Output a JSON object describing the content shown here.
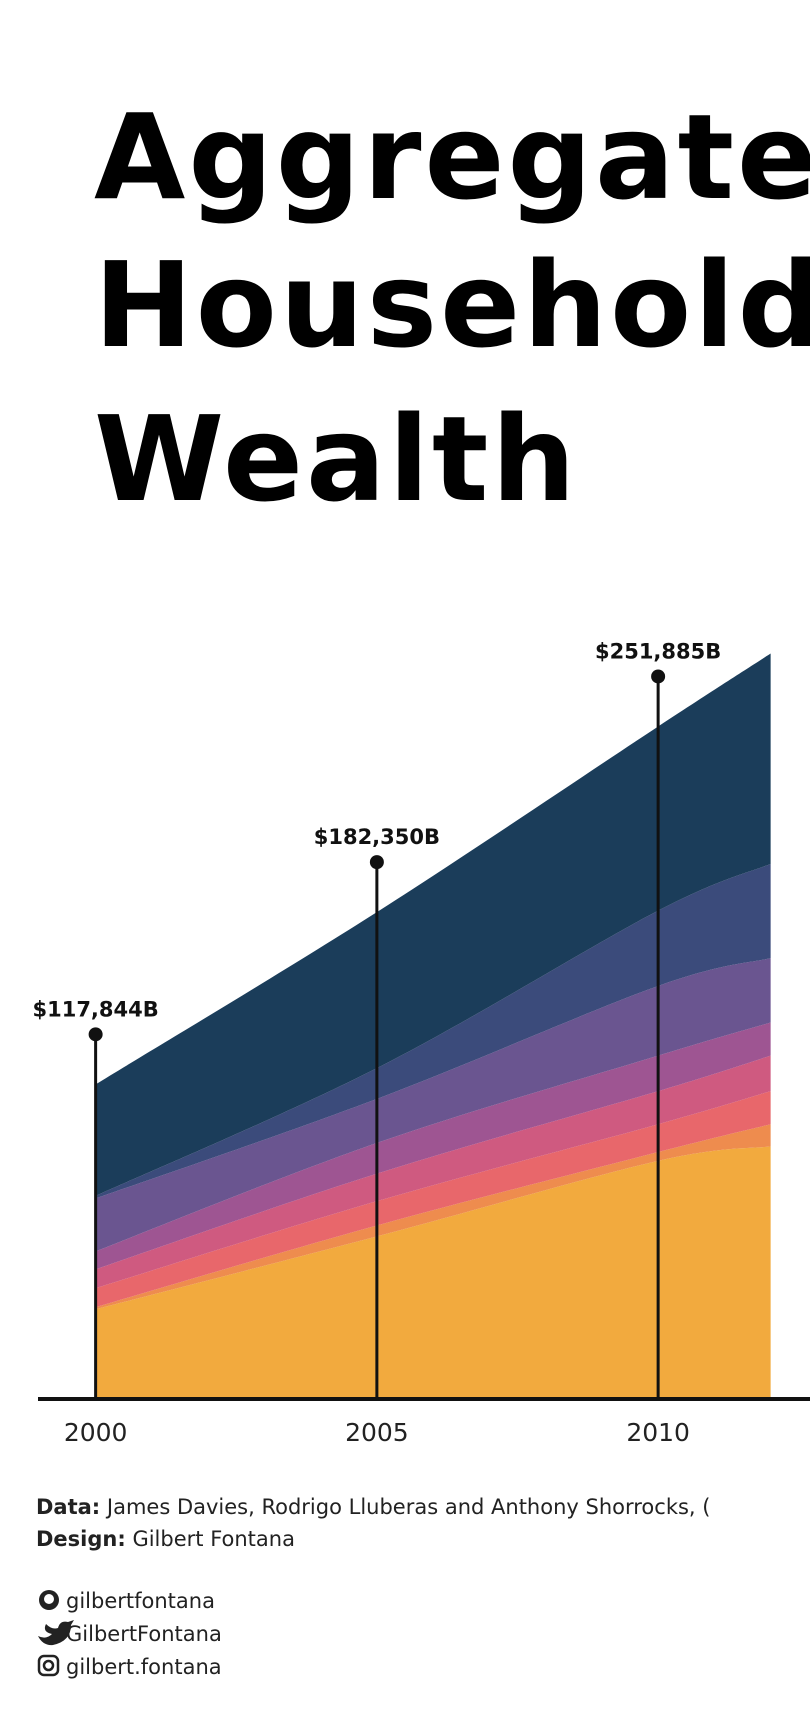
{
  "chart_data": {
    "type": "area",
    "title_lines": [
      "Aggregate",
      "Household",
      "Wealth"
    ],
    "x": [
      2000,
      2005,
      2010,
      2012
    ],
    "xlim": [
      1998.3,
      2012.7
    ],
    "ylim": [
      0,
      400000
    ],
    "xticks": [
      2000,
      2005,
      2010
    ],
    "series": [
      {
        "color": "#f2aa3e",
        "values": [
          33600,
          60900,
          89200,
          94600
        ]
      },
      {
        "color": "#ee8c4e",
        "values": [
          800,
          4100,
          3300,
          8300
        ]
      },
      {
        "color": "#e8676b",
        "values": [
          7100,
          9100,
          10400,
          12400
        ]
      },
      {
        "color": "#cf5a80",
        "values": [
          7100,
          10300,
          12400,
          13300
        ]
      },
      {
        "color": "#9e5592",
        "values": [
          6700,
          11500,
          13300,
          12400
        ]
      },
      {
        "color": "#6a5590",
        "values": [
          19800,
          16500,
          26100,
          24100
        ]
      },
      {
        "color": "#3b4b7b",
        "values": [
          1000,
          11500,
          28200,
          35300
        ]
      },
      {
        "color": "#1b3d5a",
        "values": [
          41744,
          58450,
          68985,
          78800
        ]
      }
    ],
    "totals": {
      "x": [
        2000,
        2005,
        2010
      ],
      "values": [
        117844,
        182350,
        251885
      ],
      "value_labels": [
        "$117,844B",
        "$182,350B",
        "$251,885B"
      ]
    }
  },
  "credits": {
    "data_label": "Data:",
    "data_text": "James Davies, Rodrigo Lluberas and Anthony Shorrocks, (",
    "design_label": "Design:",
    "design_text": "Gilbert Fontana"
  },
  "social": [
    "gilbertfontana",
    "GilbertFontana",
    "gilbert.fontana"
  ]
}
